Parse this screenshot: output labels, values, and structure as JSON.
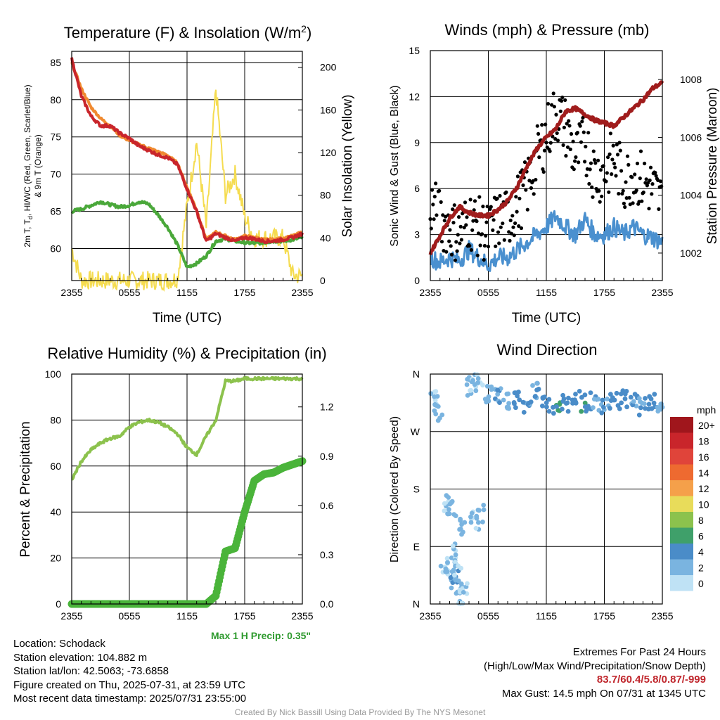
{
  "panels": {
    "temperature": {
      "title": "Temperature (F) & Insolation (W/m²)",
      "xlabel": "Time (UTC)",
      "ylabel_left_lines": [
        "2m T, T",
        "d",
        ", HI/WC (Red, Green, Scarlet/Blue)",
        "& 9m T (Orange)"
      ],
      "ylabel_right": "Solar Insolation (Yellow)"
    },
    "winds": {
      "title": "Winds (mph) & Pressure (mb)",
      "xlabel": "Time (UTC)",
      "ylabel_left": "Sonic Wind & Gust (Blue, Black)",
      "ylabel_right": "Station Pressure (Maroon)"
    },
    "humidity": {
      "title": "Relative Humidity (%) & Precipitation (in)",
      "ylabel_left": "Percent & Precipitation"
    },
    "direction": {
      "title": "Wind Direction",
      "ylabel_left": "Direction (Colored By Speed)",
      "legend_title": "mph",
      "legend_labels": [
        "20+",
        "18",
        "16",
        "14",
        "12",
        "10",
        "8",
        "6",
        "4",
        "2",
        "0"
      ],
      "legend_colors": [
        "#a0161c",
        "#c9252b",
        "#e0443a",
        "#ee6a30",
        "#f5a04a",
        "#e8dc5a",
        "#8cc24d",
        "#3fa06a",
        "#4a8cc8",
        "#7ab4e0",
        "#bfe2f5"
      ]
    }
  },
  "max_precip": "Max 1 H Precip: 0.35\"",
  "info": {
    "location": "Location: Schodack",
    "elevation": "Station elevation: 104.882 m",
    "latlon": "Station lat/lon: 42.5063; -73.6858",
    "created": "Figure created on Thu, 2025-07-31, at 23:59 UTC",
    "recent": "Most recent data timestamp: 2025/07/31 23:55:00"
  },
  "extremes": {
    "title": "Extremes For Past 24 Hours",
    "subtitle": "(High/Low/Max Wind/Precipitation/Snow Depth)",
    "values": "83.7/60.4/5.8/0.87/-999",
    "max_gust": "Max Gust: 14.5 mph On 07/31 at 1345 UTC"
  },
  "credit": "Created By Nick Bassill Using Data Provided By The NYS Mesonet",
  "colors": {
    "temp_2m": "#c9252b",
    "temp_9m": "#f08a30",
    "dewpoint": "#4aa83a",
    "insolation": "#f5dc50",
    "wind": "#4a90cf",
    "gust": "#000000",
    "pressure": "#a01c1c",
    "rh": "#8cc24d",
    "precip": "#4ab43a"
  },
  "chart_data": [
    {
      "type": "line",
      "title": "Temperature (F) & Insolation (W/m²)",
      "xlabel": "Time (UTC)",
      "ylabel": "2m T, Td, HI/WC (Red, Green, Scarlet/Blue) & 9m T (Orange)",
      "ylabel_right": "Solar Insolation (Yellow)",
      "x_ticks": [
        "2355",
        "0555",
        "1155",
        "1755",
        "2355"
      ],
      "ylim": [
        55.7,
        86.5
      ],
      "y_ticks": [
        60,
        65,
        70,
        75,
        80,
        85
      ],
      "y2lim": [
        0,
        215
      ],
      "y2_ticks": [
        0,
        40,
        80,
        120,
        160,
        200
      ],
      "x_hours": [
        0,
        1,
        2,
        3,
        4,
        5,
        6,
        7,
        8,
        9,
        10,
        11,
        12,
        13,
        14,
        15,
        16,
        17,
        18,
        19,
        20,
        21,
        22,
        23,
        24
      ],
      "series": [
        {
          "name": "2m T",
          "axis": "left",
          "values": [
            85.5,
            80.5,
            77.8,
            76.5,
            76.5,
            75.5,
            74.8,
            73.8,
            73.2,
            72.6,
            72.2,
            71.3,
            68.0,
            65.0,
            61.0,
            62.0,
            61.5,
            61.0,
            61.5,
            61.3,
            61.0,
            61.0,
            61.2,
            61.5,
            62.0
          ]
        },
        {
          "name": "9m T",
          "axis": "left",
          "values": [
            85.0,
            81.5,
            79.0,
            77.5,
            76.5,
            75.2,
            74.5,
            74.0,
            73.5,
            73.0,
            72.5,
            71.5,
            68.2,
            65.2,
            61.2,
            62.2,
            61.7,
            61.2,
            61.7,
            61.5,
            61.2,
            61.2,
            61.4,
            61.7,
            62.2
          ]
        },
        {
          "name": "Td",
          "axis": "left",
          "values": [
            65.0,
            65.3,
            65.8,
            66.3,
            65.9,
            65.6,
            65.8,
            66.3,
            66.0,
            64.5,
            62.8,
            60.5,
            57.5,
            58.0,
            59.0,
            61.0,
            61.3,
            61.0,
            60.8,
            60.7,
            60.8,
            61.0,
            61.0,
            61.2,
            61.5
          ]
        },
        {
          "name": "Insolation",
          "axis": "right",
          "values": [
            30,
            0,
            0,
            0,
            0,
            0,
            0,
            0,
            0,
            0,
            0,
            2,
            70,
            130,
            50,
            180,
            80,
            100,
            60,
            40,
            40,
            40,
            40,
            5,
            4
          ]
        }
      ]
    },
    {
      "type": "line",
      "title": "Winds (mph) & Pressure (mb)",
      "xlabel": "Time (UTC)",
      "ylabel": "Sonic Wind & Gust (Blue, Black)",
      "ylabel_right": "Station Pressure (Maroon)",
      "x_ticks": [
        "2355",
        "0555",
        "1155",
        "1755",
        "2355"
      ],
      "ylim": [
        0,
        15
      ],
      "y_ticks": [
        0,
        3,
        6,
        9,
        12,
        15
      ],
      "y2lim": [
        1001.05,
        1009.0
      ],
      "y2_ticks": [
        1002,
        1004,
        1006,
        1008
      ],
      "x_hours": [
        0,
        1,
        2,
        3,
        4,
        5,
        6,
        7,
        8,
        9,
        10,
        11,
        12,
        13,
        14,
        15,
        16,
        17,
        18,
        19,
        20,
        21,
        22,
        23,
        24
      ],
      "series": [
        {
          "name": "Sonic Wind",
          "axis": "left",
          "values": [
            1.5,
            1.2,
            1.5,
            1.3,
            2.0,
            1.5,
            1.0,
            1.5,
            1.5,
            2.0,
            2.5,
            3.0,
            3.5,
            4.2,
            3.5,
            3.0,
            4.0,
            3.0,
            3.0,
            3.5,
            3.0,
            3.5,
            3.0,
            2.8,
            2.5
          ]
        },
        {
          "name": "Gust",
          "axis": "left",
          "values": [
            5.0,
            4.0,
            3.5,
            3.0,
            4.0,
            3.5,
            3.0,
            4.0,
            4.0,
            5.0,
            6.0,
            8.0,
            9.5,
            11.0,
            10.0,
            8.0,
            9.0,
            7.0,
            7.0,
            8.0,
            6.5,
            7.0,
            6.5,
            6.0,
            5.0
          ]
        },
        {
          "name": "Pressure",
          "axis": "right",
          "values": [
            1002.0,
            1002.6,
            1003.2,
            1003.6,
            1003.4,
            1003.3,
            1003.3,
            1003.5,
            1003.8,
            1004.3,
            1005.0,
            1005.6,
            1006.0,
            1006.3,
            1006.9,
            1007.0,
            1006.8,
            1006.6,
            1006.5,
            1006.4,
            1006.7,
            1007.0,
            1007.3,
            1007.7,
            1007.9
          ]
        }
      ]
    },
    {
      "type": "line",
      "title": "Relative Humidity (%) & Precipitation (in)",
      "ylabel": "Percent & Precipitation",
      "x_ticks": [
        "2355",
        "0555",
        "1155",
        "1755",
        "2355"
      ],
      "ylim": [
        0,
        100
      ],
      "y_ticks": [
        0,
        20,
        40,
        60,
        80,
        100
      ],
      "y2lim": [
        0,
        1.4
      ],
      "y2_ticks": [
        0.0,
        0.3,
        0.6,
        0.9,
        1.2
      ],
      "x_hours": [
        0,
        1,
        2,
        3,
        4,
        5,
        6,
        7,
        8,
        9,
        10,
        11,
        12,
        13,
        14,
        15,
        16,
        17,
        18,
        19,
        20,
        21,
        22,
        23,
        24
      ],
      "series": [
        {
          "name": "RH",
          "axis": "left",
          "values": [
            54,
            62,
            67,
            70,
            72,
            73,
            77,
            79,
            80,
            79,
            77,
            74,
            68,
            65,
            73,
            80,
            97,
            97,
            98,
            98,
            98,
            98,
            98,
            98,
            98
          ]
        },
        {
          "name": "Precipitation",
          "axis": "right",
          "values": [
            0,
            0,
            0,
            0,
            0,
            0,
            0,
            0,
            0,
            0,
            0,
            0,
            0,
            0,
            0,
            0.05,
            0.32,
            0.34,
            0.56,
            0.75,
            0.79,
            0.8,
            0.83,
            0.85,
            0.87
          ]
        }
      ]
    },
    {
      "type": "scatter",
      "title": "Wind Direction",
      "ylabel": "Direction (Colored By Speed)",
      "x_ticks": [
        "2355",
        "0555",
        "1155",
        "1755",
        "2355"
      ],
      "y_ticks": [
        "N",
        "E",
        "S",
        "W",
        "N"
      ],
      "ylim": [
        0,
        360
      ],
      "x_hours": [
        0.4,
        0.8,
        1.5,
        2.0,
        2.5,
        3.0,
        3.5,
        4.0,
        4.5,
        5.0,
        6.0,
        7.0,
        8.0,
        9.0,
        10.0,
        11.0,
        12.0,
        13.0,
        14.0,
        15.0,
        16.0,
        17.0,
        18.0,
        19.0,
        20.0,
        21.0,
        22.0,
        23.0,
        23.8,
        1.6,
        2.2,
        3.4,
        4.6,
        5.2,
        2.3,
        2.8,
        3.0
      ],
      "values": [
        320,
        300,
        60,
        55,
        40,
        30,
        20,
        340,
        345,
        355,
        330,
        325,
        315,
        320,
        305,
        335,
        315,
        310,
        315,
        320,
        315,
        318,
        310,
        315,
        320,
        315,
        310,
        320,
        300,
        160,
        150,
        120,
        130,
        140,
        80,
        60,
        5
      ],
      "speeds": [
        1,
        2,
        1,
        2,
        3,
        2,
        1,
        2,
        1,
        1,
        2,
        3,
        2,
        4,
        3,
        3,
        4,
        5,
        4,
        4,
        5,
        3,
        3,
        4,
        4,
        3,
        3,
        4,
        2,
        1,
        2,
        2,
        1,
        2,
        1,
        1,
        1
      ],
      "legend_title": "mph",
      "legend": [
        "20+",
        "18",
        "16",
        "14",
        "12",
        "10",
        "8",
        "6",
        "4",
        "2",
        "0"
      ]
    }
  ]
}
